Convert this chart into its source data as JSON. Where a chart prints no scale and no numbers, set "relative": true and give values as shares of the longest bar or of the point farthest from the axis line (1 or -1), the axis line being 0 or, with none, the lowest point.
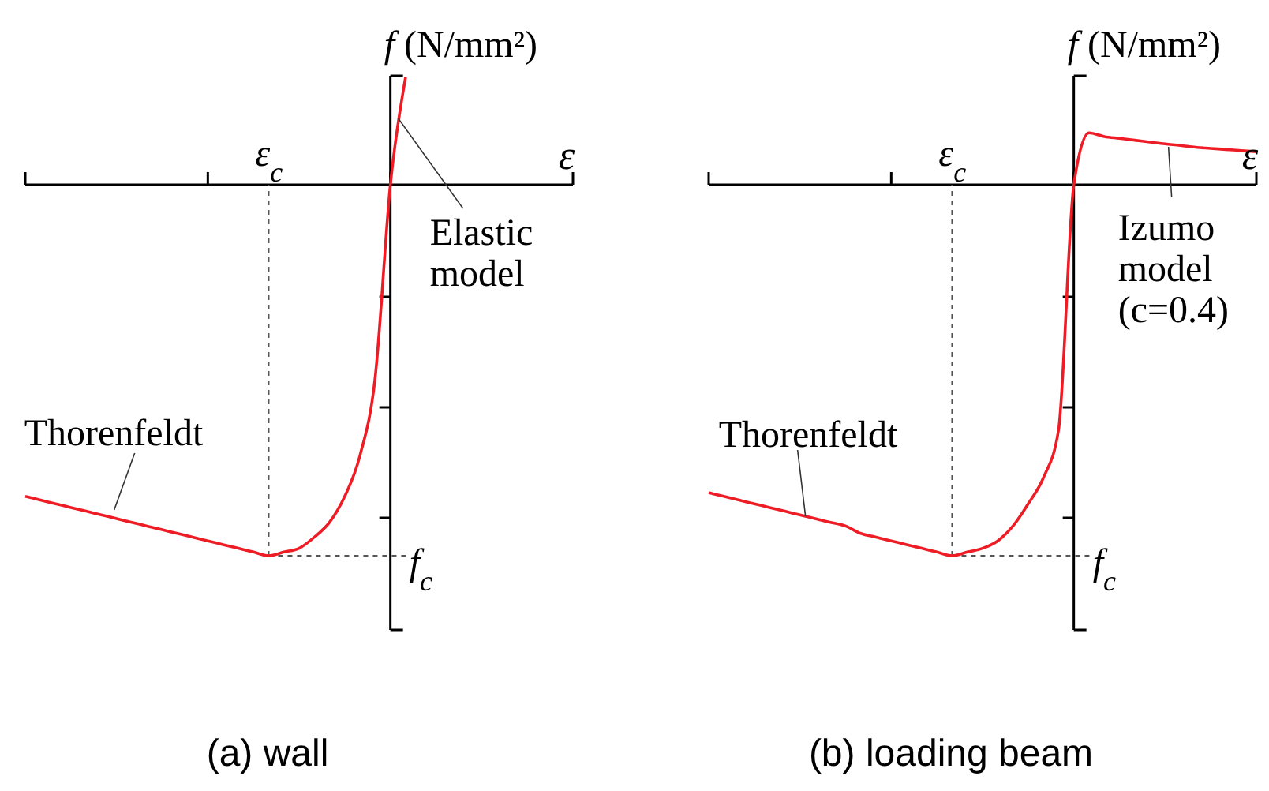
{
  "chart_data": [
    {
      "type": "line",
      "title": "(a) wall",
      "xlabel": "ε",
      "ylabel": "f (N/mm²)",
      "relative": true,
      "categories": [
        null,
        null,
        null,
        null,
        null,
        null,
        null,
        null,
        null,
        null,
        null,
        null,
        null,
        null,
        null,
        null,
        null,
        null,
        null,
        null,
        null,
        null,
        null,
        null,
        null,
        null,
        null,
        null,
        null,
        null,
        null,
        null,
        null,
        null,
        null,
        null,
        null
      ],
      "series": [
        {
          "color": "#ee1c25",
          "values": [
            -0.84,
            -0.85,
            -0.86,
            -0.87,
            -0.88,
            -0.89,
            -0.9,
            -0.91,
            -0.92,
            -0.93,
            -0.94,
            -0.95,
            -0.96,
            -0.97,
            -0.98,
            -0.99,
            -1,
            -0.99,
            -0.98,
            -0.95,
            -0.91,
            -0.84,
            -0.73,
            -0.52,
            0,
            0.29,
            null,
            null,
            null,
            null,
            null,
            null,
            null,
            null,
            null,
            null,
            null
          ]
        }
      ],
      "ref_lines": [
        {
          "axis": "y",
          "value": -1,
          "label": "f$_{c}$",
          "line_style": "dashed"
        }
      ],
      "annotations": [
        "Thorenfeldt",
        "Elastic\nmodel",
        "ε$_{c}$"
      ]
    },
    {
      "type": "line",
      "title": "(b) loading beam",
      "xlabel": "ε",
      "ylabel": "f (N/mm²)",
      "relative": true,
      "categories": [
        null,
        null,
        null,
        null,
        null,
        null,
        null,
        null,
        null,
        null,
        null,
        null,
        null,
        null,
        null,
        null,
        null,
        null,
        null,
        null,
        null,
        null,
        null,
        null,
        null,
        null,
        null,
        null,
        null,
        null,
        null,
        null,
        null,
        null,
        null,
        null,
        null
      ],
      "series": [
        {
          "color": "#ee1c25",
          "values": [
            -0.83,
            -0.84,
            -0.85,
            -0.86,
            -0.87,
            -0.88,
            -0.89,
            -0.9,
            -0.91,
            -0.92,
            -0.94,
            -0.95,
            -0.96,
            -0.97,
            -0.98,
            -0.99,
            -1,
            -0.99,
            -0.98,
            -0.96,
            -0.92,
            -0.86,
            -0.79,
            -0.66,
            0,
            0.14,
            0.13,
            0.125,
            0.12,
            0.115,
            0.11,
            0.106,
            0.101,
            0.098,
            0.095,
            0.092,
            0.089
          ]
        }
      ],
      "ref_lines": [
        {
          "axis": "y",
          "value": -1,
          "label": "f$_{c}$",
          "line_style": "dashed"
        }
      ],
      "annotations": [
        "Thorenfeldt",
        "Izumo\nmodel\n(c=0.4)",
        "ε$_{c}$"
      ]
    }
  ]
}
